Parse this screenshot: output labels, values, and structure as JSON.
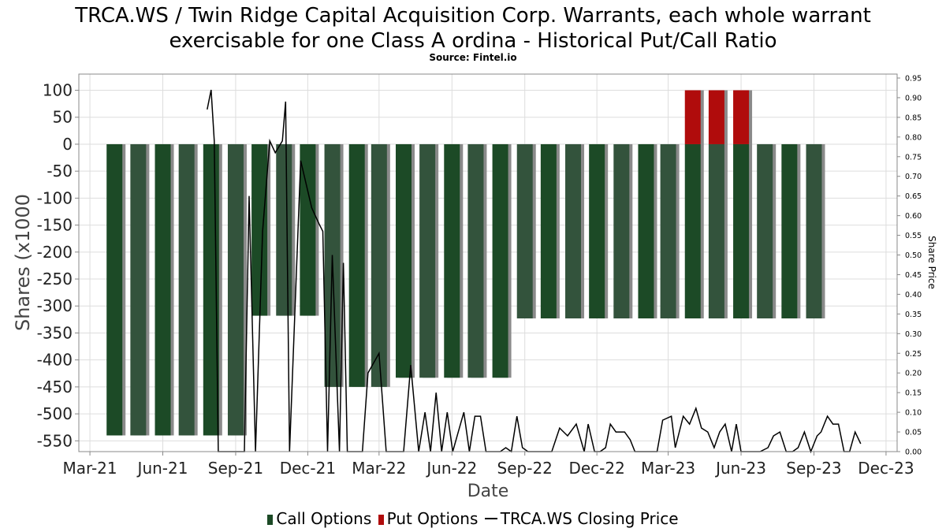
{
  "title_line1": "TRCA.WS / Twin Ridge Capital Acquisition Corp. Warrants, each whole warrant",
  "title_line2": "exercisable for one Class A ordina - Historical Put/Call Ratio",
  "source": "Source: Fintel.io",
  "legend": {
    "calls": "Call Options",
    "puts": "Put Options",
    "price": "TRCA.WS Closing Price"
  },
  "colors": {
    "calls": "#1c4a26",
    "calls_alt": "#33533c",
    "puts": "#b00c0c",
    "price": "#000000",
    "grid": "#dddddd"
  },
  "chart_data": {
    "type": "bar",
    "title": "TRCA.WS / Twin Ridge Capital Acquisition Corp. Warrants, each whole warrant exercisable for one Class A ordina - Historical Put/Call Ratio",
    "xlabel": "Date",
    "ylabel": "Shares (x1000",
    "y2label": "Share Price",
    "ylim": [
      -570,
      130
    ],
    "y2lim": [
      0.0,
      0.96
    ],
    "yticks": [
      100,
      50,
      0,
      -50,
      -100,
      -150,
      -200,
      -250,
      -300,
      -350,
      -400,
      -450,
      -500,
      -550
    ],
    "y2ticks": [
      0.95,
      0.9,
      0.85,
      0.8,
      0.75,
      0.7,
      0.65,
      0.6,
      0.55,
      0.5,
      0.45,
      0.4,
      0.35,
      0.3,
      0.25,
      0.2,
      0.15,
      0.1,
      0.05,
      0.0
    ],
    "xticks": [
      "Mar-21",
      "Jun-21",
      "Sep-21",
      "Dec-21",
      "Mar-22",
      "Jun-22",
      "Sep-22",
      "Dec-22",
      "Mar-23",
      "Jun-23",
      "Sep-23",
      "Dec-23"
    ],
    "xrange": [
      "2021-02-15",
      "2023-12-15"
    ],
    "grid": true,
    "legend_position": "bottom",
    "series": [
      {
        "name": "Call Options",
        "x": [
          "2021-04-01",
          "2021-05-01",
          "2021-06-01",
          "2021-07-01",
          "2021-08-01",
          "2021-09-01",
          "2021-10-01",
          "2021-11-01",
          "2021-12-01",
          "2022-01-01",
          "2022-02-01",
          "2022-03-01",
          "2022-04-01",
          "2022-05-01",
          "2022-06-01",
          "2022-07-01",
          "2022-08-01",
          "2022-09-01",
          "2022-10-01",
          "2022-11-01",
          "2022-12-01",
          "2023-01-01",
          "2023-02-01",
          "2023-03-01",
          "2023-04-01",
          "2023-05-01",
          "2023-06-01",
          "2023-07-01",
          "2023-08-01",
          "2023-09-01"
        ],
        "values": [
          -540,
          -540,
          -540,
          -540,
          -540,
          -540,
          -318,
          -318,
          -318,
          -450,
          -450,
          -450,
          -433,
          -433,
          -433,
          -433,
          -433,
          -323,
          -323,
          -323,
          -323,
          -323,
          -323,
          -323,
          -323,
          -323,
          -323,
          -323,
          -323,
          -323
        ]
      },
      {
        "name": "Put Options",
        "x": [
          "2023-04-01",
          "2023-05-01",
          "2023-06-01"
        ],
        "values": [
          100,
          100,
          100
        ]
      },
      {
        "name": "TRCA.WS Closing Price",
        "x": [
          "2021-07-27",
          "2021-08-01",
          "2021-08-05",
          "2021-08-10",
          "2021-08-20",
          "2021-09-01",
          "2021-09-12",
          "2021-09-18",
          "2021-09-26",
          "2021-10-05",
          "2021-10-14",
          "2021-10-21",
          "2021-10-30",
          "2021-11-03",
          "2021-11-08",
          "2021-11-22",
          "2021-12-06",
          "2021-12-15",
          "2021-12-20",
          "2021-12-26",
          "2022-01-01",
          "2022-01-10",
          "2022-01-15",
          "2022-01-20",
          "2022-01-28",
          "2022-02-02",
          "2022-02-08",
          "2022-02-15",
          "2022-03-01",
          "2022-03-10",
          "2022-03-15",
          "2022-03-20",
          "2022-04-01",
          "2022-04-10",
          "2022-04-20",
          "2022-04-28",
          "2022-05-05",
          "2022-05-12",
          "2022-05-19",
          "2022-05-26",
          "2022-06-02",
          "2022-06-09",
          "2022-06-16",
          "2022-06-23",
          "2022-06-30",
          "2022-07-07",
          "2022-07-14",
          "2022-07-22",
          "2022-08-01",
          "2022-08-08",
          "2022-08-15",
          "2022-08-22",
          "2022-08-29",
          "2022-09-05",
          "2022-09-15",
          "2022-09-25",
          "2022-10-05",
          "2022-10-15",
          "2022-10-20",
          "2022-10-25",
          "2022-11-05",
          "2022-11-15",
          "2022-11-20",
          "2022-11-28",
          "2022-12-05",
          "2022-12-12",
          "2022-12-18",
          "2022-12-25",
          "2023-01-05",
          "2023-01-12",
          "2023-01-18",
          "2023-01-25",
          "2023-02-01",
          "2023-02-08",
          "2023-02-15",
          "2023-02-22",
          "2023-03-05",
          "2023-03-10",
          "2023-03-20",
          "2023-03-28",
          "2023-04-05",
          "2023-04-12",
          "2023-04-20",
          "2023-04-28",
          "2023-05-05",
          "2023-05-12",
          "2023-05-20",
          "2023-05-26",
          "2023-06-01",
          "2023-06-10",
          "2023-06-25",
          "2023-07-05",
          "2023-07-12",
          "2023-07-20",
          "2023-07-28",
          "2023-08-05",
          "2023-08-12",
          "2023-08-20",
          "2023-08-28",
          "2023-09-05",
          "2023-09-10",
          "2023-09-18",
          "2023-09-25",
          "2023-10-02",
          "2023-10-09",
          "2023-10-16",
          "2023-10-23",
          "2023-10-30"
        ],
        "values": [
          0.87,
          0.92,
          0.79,
          0.0,
          0.0,
          0.0,
          0.0,
          0.65,
          0.0,
          0.56,
          0.79,
          0.76,
          0.79,
          0.89,
          0.0,
          0.74,
          0.62,
          0.58,
          0.56,
          0.0,
          0.5,
          0.0,
          0.48,
          0.0,
          0.0,
          0.0,
          0.0,
          0.2,
          0.25,
          0.0,
          0.0,
          0.0,
          0.0,
          0.22,
          0.0,
          0.1,
          0.0,
          0.15,
          0.0,
          0.1,
          0.0,
          0.05,
          0.1,
          0.0,
          0.09,
          0.09,
          0.0,
          0.0,
          0.0,
          0.01,
          0.0,
          0.09,
          0.01,
          0.0,
          0.0,
          0.0,
          0.0,
          0.06,
          0.05,
          0.04,
          0.07,
          0.0,
          0.07,
          0.0,
          0.0,
          0.01,
          0.07,
          0.05,
          0.05,
          0.03,
          0.0,
          0.0,
          0.0,
          0.0,
          0.0,
          0.08,
          0.09,
          0.01,
          0.09,
          0.07,
          0.11,
          0.06,
          0.05,
          0.01,
          0.05,
          0.07,
          0.0,
          0.07,
          0.0,
          0.0,
          0.0,
          0.01,
          0.04,
          0.05,
          0.0,
          0.0,
          0.01,
          0.05,
          0.0,
          0.04,
          0.05,
          0.09,
          0.07,
          0.07,
          0.0,
          0.0,
          0.05,
          0.02
        ]
      }
    ]
  }
}
